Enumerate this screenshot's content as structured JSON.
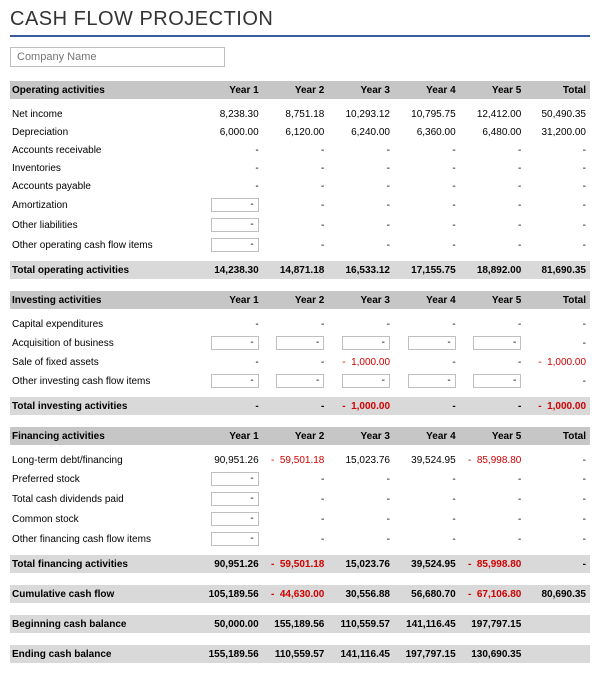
{
  "title": "CASH FLOW PROJECTION",
  "company_placeholder": "Company Name",
  "columns": [
    "Year 1",
    "Year 2",
    "Year 3",
    "Year 4",
    "Year 5",
    "Total"
  ],
  "colors": {
    "accent": "#3a5c9e",
    "neg": "#d00000",
    "head_bg": "#c6c6c6",
    "total_bg": "#d9d9d9"
  },
  "sections": {
    "operating": {
      "title": "Operating activities",
      "rows": [
        {
          "label": "Net income",
          "vals": [
            "8,238.30",
            "8,751.18",
            "10,293.12",
            "10,795.75",
            "12,412.00",
            "50,490.35"
          ],
          "neg": [
            false,
            false,
            false,
            false,
            false,
            false
          ],
          "box": [
            false,
            false,
            false,
            false,
            false
          ]
        },
        {
          "label": "Depreciation",
          "vals": [
            "6,000.00",
            "6,120.00",
            "6,240.00",
            "6,360.00",
            "6,480.00",
            "31,200.00"
          ],
          "neg": [
            false,
            false,
            false,
            false,
            false,
            false
          ],
          "box": [
            false,
            false,
            false,
            false,
            false
          ]
        },
        {
          "label": "Accounts receivable",
          "vals": [
            "-",
            "-",
            "-",
            "-",
            "-",
            "-"
          ],
          "neg": [
            false,
            false,
            false,
            false,
            false,
            false
          ],
          "box": [
            false,
            false,
            false,
            false,
            false
          ]
        },
        {
          "label": "Inventories",
          "vals": [
            "-",
            "-",
            "-",
            "-",
            "-",
            "-"
          ],
          "neg": [
            false,
            false,
            false,
            false,
            false,
            false
          ],
          "box": [
            false,
            false,
            false,
            false,
            false
          ]
        },
        {
          "label": "Accounts payable",
          "vals": [
            "-",
            "-",
            "-",
            "-",
            "-",
            "-"
          ],
          "neg": [
            false,
            false,
            false,
            false,
            false,
            false
          ],
          "box": [
            false,
            false,
            false,
            false,
            false
          ]
        },
        {
          "label": "Amortization",
          "vals": [
            "-",
            "-",
            "-",
            "-",
            "-",
            "-"
          ],
          "neg": [
            false,
            false,
            false,
            false,
            false,
            false
          ],
          "box": [
            true,
            false,
            false,
            false,
            false
          ]
        },
        {
          "label": "Other liabilities",
          "vals": [
            "-",
            "-",
            "-",
            "-",
            "-",
            "-"
          ],
          "neg": [
            false,
            false,
            false,
            false,
            false,
            false
          ],
          "box": [
            true,
            false,
            false,
            false,
            false
          ]
        },
        {
          "label": "Other operating cash flow items",
          "vals": [
            "-",
            "-",
            "-",
            "-",
            "-",
            "-"
          ],
          "neg": [
            false,
            false,
            false,
            false,
            false,
            false
          ],
          "box": [
            true,
            false,
            false,
            false,
            false
          ]
        }
      ],
      "total": {
        "label": "Total operating activities",
        "vals": [
          "14,238.30",
          "14,871.18",
          "16,533.12",
          "17,155.75",
          "18,892.00",
          "81,690.35"
        ],
        "neg": [
          false,
          false,
          false,
          false,
          false,
          false
        ]
      }
    },
    "investing": {
      "title": "Investing activities",
      "rows": [
        {
          "label": "Capital expenditures",
          "vals": [
            "-",
            "-",
            "-",
            "-",
            "-",
            "-"
          ],
          "neg": [
            false,
            false,
            false,
            false,
            false,
            false
          ],
          "box": [
            false,
            false,
            false,
            false,
            false
          ]
        },
        {
          "label": "Acquisition of business",
          "vals": [
            "-",
            "-",
            "-",
            "-",
            "-",
            "-"
          ],
          "neg": [
            false,
            false,
            false,
            false,
            false,
            false
          ],
          "box": [
            true,
            true,
            true,
            true,
            true
          ]
        },
        {
          "label": "Sale of fixed assets",
          "vals": [
            "-",
            "-",
            "1,000.00",
            "-",
            "-",
            "1,000.00"
          ],
          "neg": [
            false,
            false,
            true,
            false,
            false,
            true
          ],
          "box": [
            false,
            false,
            false,
            false,
            false
          ]
        },
        {
          "label": "Other investing cash flow items",
          "vals": [
            "-",
            "-",
            "-",
            "-",
            "-",
            "-"
          ],
          "neg": [
            false,
            false,
            false,
            false,
            false,
            false
          ],
          "box": [
            true,
            true,
            true,
            true,
            true
          ]
        }
      ],
      "total": {
        "label": "Total investing activities",
        "vals": [
          "-",
          "-",
          "1,000.00",
          "-",
          "-",
          "1,000.00"
        ],
        "neg": [
          false,
          false,
          true,
          false,
          false,
          true
        ]
      }
    },
    "financing": {
      "title": "Financing activities",
      "rows": [
        {
          "label": "Long-term debt/financing",
          "vals": [
            "90,951.26",
            "59,501.18",
            "15,023.76",
            "39,524.95",
            "85,998.80",
            "-"
          ],
          "neg": [
            false,
            true,
            false,
            false,
            true,
            false
          ],
          "box": [
            false,
            false,
            false,
            false,
            false
          ]
        },
        {
          "label": "Preferred stock",
          "vals": [
            "-",
            "-",
            "-",
            "-",
            "-",
            "-"
          ],
          "neg": [
            false,
            false,
            false,
            false,
            false,
            false
          ],
          "box": [
            true,
            false,
            false,
            false,
            false
          ]
        },
        {
          "label": "Total cash dividends paid",
          "vals": [
            "-",
            "-",
            "-",
            "-",
            "-",
            "-"
          ],
          "neg": [
            false,
            false,
            false,
            false,
            false,
            false
          ],
          "box": [
            true,
            false,
            false,
            false,
            false
          ]
        },
        {
          "label": "Common stock",
          "vals": [
            "-",
            "-",
            "-",
            "-",
            "-",
            "-"
          ],
          "neg": [
            false,
            false,
            false,
            false,
            false,
            false
          ],
          "box": [
            true,
            false,
            false,
            false,
            false
          ]
        },
        {
          "label": "Other financing cash flow items",
          "vals": [
            "-",
            "-",
            "-",
            "-",
            "-",
            "-"
          ],
          "neg": [
            false,
            false,
            false,
            false,
            false,
            false
          ],
          "box": [
            true,
            false,
            false,
            false,
            false
          ]
        }
      ],
      "total": {
        "label": "Total financing activities",
        "vals": [
          "90,951.26",
          "59,501.18",
          "15,023.76",
          "39,524.95",
          "85,998.80",
          "-"
        ],
        "neg": [
          false,
          true,
          false,
          false,
          true,
          false
        ]
      }
    }
  },
  "summaries": [
    {
      "label": "Cumulative cash flow",
      "vals": [
        "105,189.56",
        "44,630.00",
        "30,556.88",
        "56,680.70",
        "67,106.80",
        "80,690.35"
      ],
      "neg": [
        false,
        true,
        false,
        false,
        true,
        false
      ]
    },
    {
      "label": "Beginning cash balance",
      "vals": [
        "50,000.00",
        "155,189.56",
        "110,559.57",
        "141,116.45",
        "197,797.15",
        ""
      ],
      "neg": [
        false,
        false,
        false,
        false,
        false,
        false
      ]
    },
    {
      "label": "Ending cash balance",
      "vals": [
        "155,189.56",
        "110,559.57",
        "141,116.45",
        "197,797.15",
        "130,690.35",
        ""
      ],
      "neg": [
        false,
        false,
        false,
        false,
        false,
        false
      ]
    }
  ]
}
